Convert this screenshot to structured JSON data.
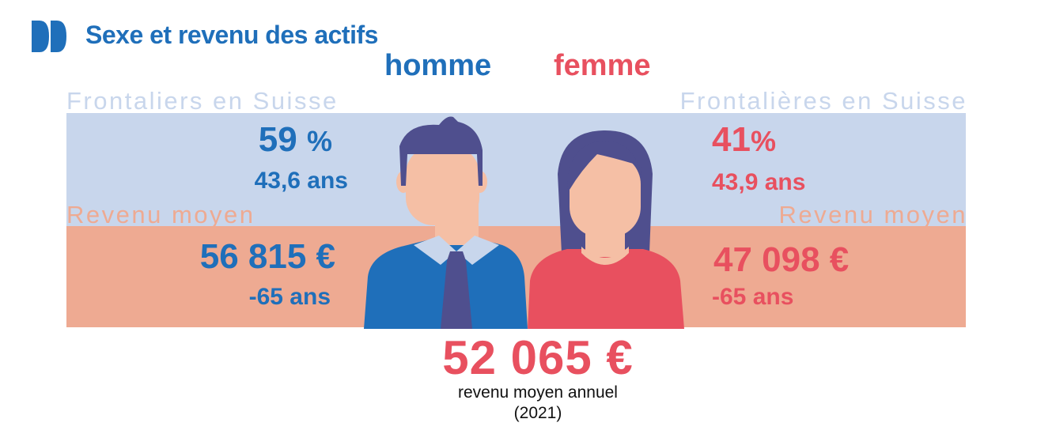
{
  "header": {
    "title": "Sexe et revenu des actifs",
    "logo_icon": "double-chevron-icon"
  },
  "colors": {
    "blue": "#1f6fba",
    "red": "#e8505f",
    "band_top": "#c8d6ec",
    "band_bottom": "#eeaa92"
  },
  "homme": {
    "label": "homme",
    "group_label": "Frontaliers en Suisse",
    "percent": "59",
    "percent_symbol": "%",
    "age": "43,6 ans",
    "revenue_label": "Revenu moyen",
    "revenue": "56 815 €",
    "age_group": "-65 ans"
  },
  "femme": {
    "label": "femme",
    "group_label": "Frontalières en Suisse",
    "percent": "41",
    "percent_symbol": "%",
    "age": "43,9 ans",
    "revenue_label": "Revenu moyen",
    "revenue": "47 098 €",
    "age_group": "-65 ans"
  },
  "total": {
    "value": "52 065 €",
    "caption_line1": "revenu moyen annuel",
    "caption_line2": "(2021)"
  }
}
